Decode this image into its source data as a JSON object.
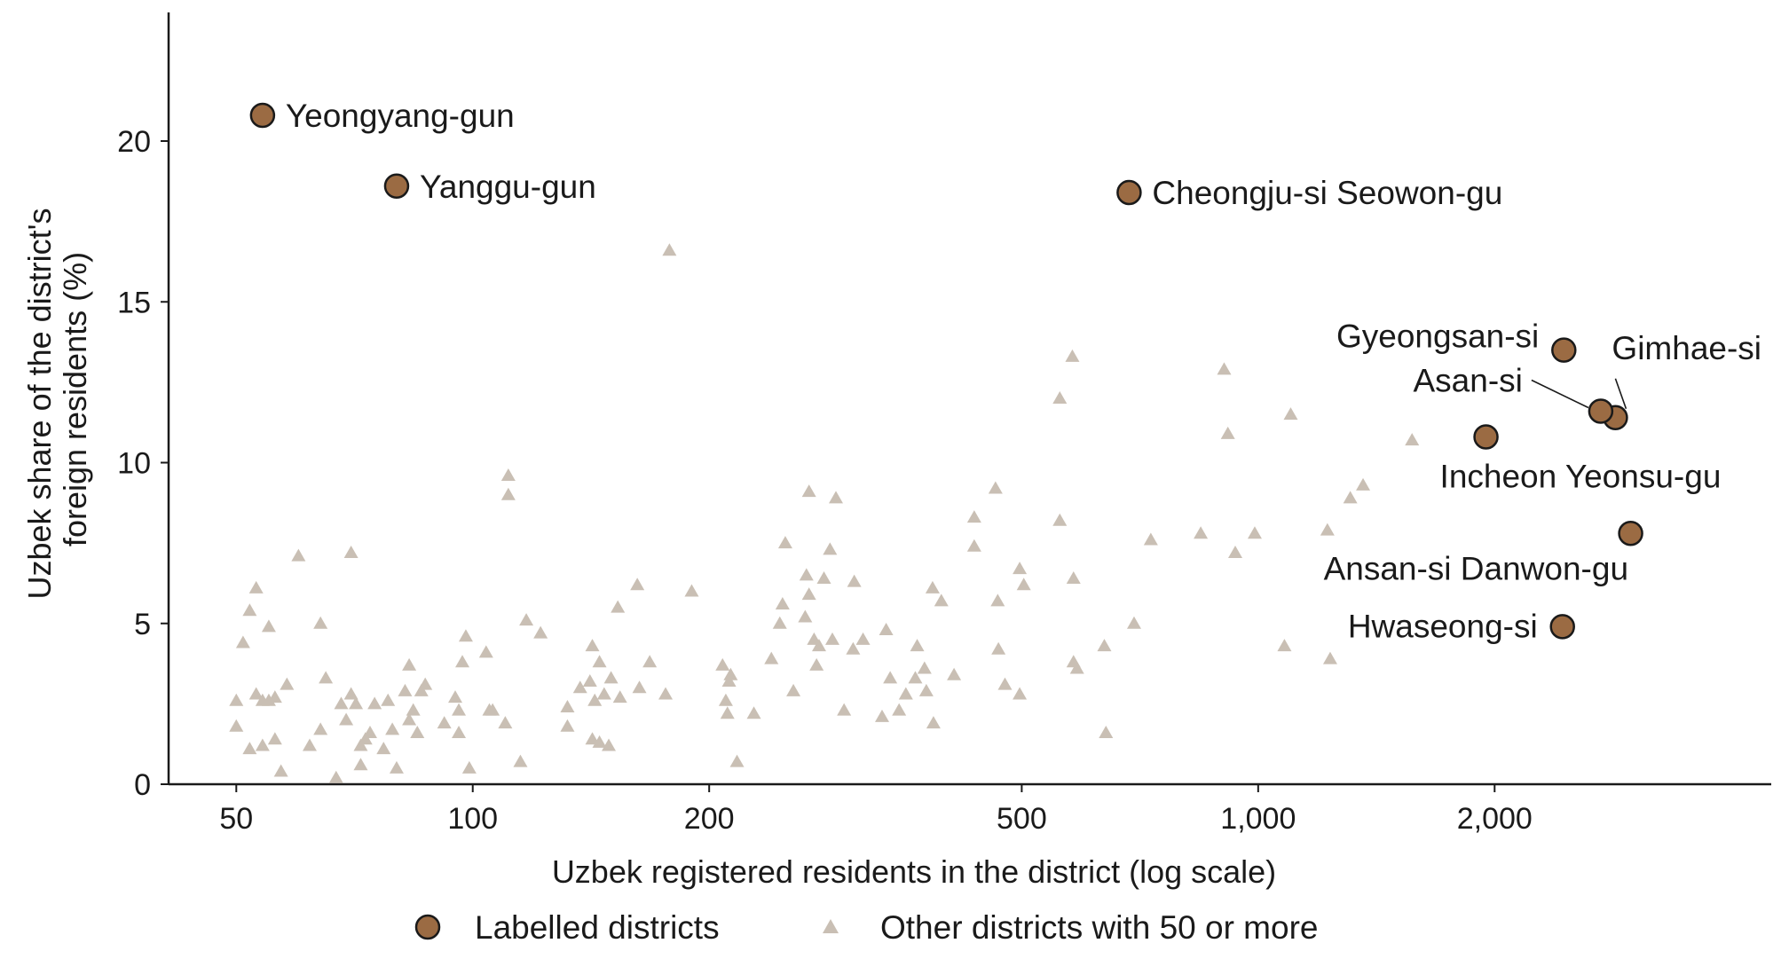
{
  "chart_data": {
    "type": "scatter",
    "title": "",
    "xlabel": "Uzbek registered residents in the district (log scale)",
    "ylabel": "Uzbek share of the district's foreign residents (%)",
    "x_scale": "log",
    "xlim": [
      41,
      4500
    ],
    "ylim": [
      0,
      24
    ],
    "x_ticks": [
      {
        "value": 50,
        "label": "50"
      },
      {
        "value": 100,
        "label": "100"
      },
      {
        "value": 200,
        "label": "200"
      },
      {
        "value": 500,
        "label": "500"
      },
      {
        "value": 1000,
        "label": "1,000"
      },
      {
        "value": 2000,
        "label": "2,000"
      }
    ],
    "y_ticks": [
      {
        "value": 0,
        "label": "0"
      },
      {
        "value": 5,
        "label": "5"
      },
      {
        "value": 10,
        "label": "10"
      },
      {
        "value": 15,
        "label": "15"
      },
      {
        "value": 20,
        "label": "20"
      }
    ],
    "grid": false,
    "legend_placement": "bottom-center",
    "series": [
      {
        "name": "Labelled districts",
        "marker": "circle",
        "color": "#9b6b43",
        "stroke": "#1a1a1a",
        "points": [
          {
            "x": 54,
            "y": 20.8,
            "label": "Yeongyang-gun"
          },
          {
            "x": 80,
            "y": 18.6,
            "label": "Yanggu-gun"
          },
          {
            "x": 685,
            "y": 18.4,
            "label": "Cheongju-si Seowon-gu"
          },
          {
            "x": 2450,
            "y": 13.5,
            "label": "Gyeongsan-si"
          },
          {
            "x": 2850,
            "y": 11.4,
            "label": "Gimhae-si"
          },
          {
            "x": 2730,
            "y": 11.6,
            "label": "Asan-si"
          },
          {
            "x": 1950,
            "y": 10.8,
            "label": "Incheon Yeonsu-gu"
          },
          {
            "x": 2980,
            "y": 7.8,
            "label": "Ansan-si Danwon-gu"
          },
          {
            "x": 2440,
            "y": 4.9,
            "label": "Hwaseong-si"
          }
        ]
      },
      {
        "name": "Other districts with 50 or more",
        "marker": "triangle",
        "color": "#c9bfb4",
        "points": [
          [
            50,
            2.6
          ],
          [
            50,
            1.8
          ],
          [
            51,
            4.4
          ],
          [
            52,
            1.1
          ],
          [
            52,
            5.4
          ],
          [
            53,
            2.8
          ],
          [
            53,
            6.1
          ],
          [
            54,
            2.6
          ],
          [
            54,
            1.2
          ],
          [
            55,
            4.9
          ],
          [
            55,
            2.6
          ],
          [
            56,
            1.4
          ],
          [
            56,
            2.7
          ],
          [
            57,
            0.4
          ],
          [
            58,
            3.1
          ],
          [
            60,
            7.1
          ],
          [
            62,
            1.2
          ],
          [
            64,
            5.0
          ],
          [
            64,
            1.7
          ],
          [
            65,
            3.3
          ],
          [
            67,
            0.2
          ],
          [
            68,
            2.5
          ],
          [
            69,
            2.0
          ],
          [
            70,
            7.2
          ],
          [
            70,
            2.8
          ],
          [
            71,
            2.5
          ],
          [
            72,
            1.2
          ],
          [
            72,
            0.6
          ],
          [
            73,
            1.4
          ],
          [
            74,
            1.6
          ],
          [
            75,
            2.5
          ],
          [
            77,
            1.1
          ],
          [
            78,
            2.6
          ],
          [
            79,
            1.7
          ],
          [
            80,
            0.5
          ],
          [
            82,
            2.9
          ],
          [
            83,
            2.0
          ],
          [
            83,
            3.7
          ],
          [
            84,
            2.3
          ],
          [
            85,
            1.6
          ],
          [
            86,
            2.9
          ],
          [
            87,
            3.1
          ],
          [
            92,
            1.9
          ],
          [
            95,
            2.7
          ],
          [
            96,
            2.3
          ],
          [
            96,
            1.6
          ],
          [
            97,
            3.8
          ],
          [
            98,
            4.6
          ],
          [
            99,
            0.5
          ],
          [
            104,
            4.1
          ],
          [
            105,
            2.3
          ],
          [
            106,
            2.3
          ],
          [
            110,
            1.9
          ],
          [
            111,
            9.6
          ],
          [
            111,
            9.0
          ],
          [
            115,
            0.7
          ],
          [
            117,
            5.1
          ],
          [
            122,
            4.7
          ],
          [
            132,
            1.8
          ],
          [
            132,
            2.4
          ],
          [
            137,
            3.0
          ],
          [
            141,
            3.2
          ],
          [
            142,
            4.3
          ],
          [
            142,
            1.4
          ],
          [
            143,
            2.6
          ],
          [
            145,
            1.3
          ],
          [
            145,
            3.8
          ],
          [
            147,
            2.8
          ],
          [
            149,
            1.2
          ],
          [
            150,
            3.3
          ],
          [
            153,
            5.5
          ],
          [
            154,
            2.7
          ],
          [
            162,
            6.2
          ],
          [
            163,
            3.0
          ],
          [
            168,
            3.8
          ],
          [
            176,
            2.8
          ],
          [
            178,
            16.6
          ],
          [
            190,
            6.0
          ],
          [
            208,
            3.7
          ],
          [
            210,
            2.6
          ],
          [
            211,
            2.2
          ],
          [
            212,
            3.2
          ],
          [
            213,
            3.4
          ],
          [
            217,
            0.7
          ],
          [
            228,
            2.2
          ],
          [
            240,
            3.9
          ],
          [
            246,
            5.0
          ],
          [
            248,
            5.6
          ],
          [
            250,
            7.5
          ],
          [
            256,
            2.9
          ],
          [
            265,
            5.2
          ],
          [
            266,
            6.5
          ],
          [
            268,
            9.1
          ],
          [
            268,
            5.9
          ],
          [
            272,
            4.5
          ],
          [
            274,
            3.7
          ],
          [
            276,
            4.3
          ],
          [
            280,
            6.4
          ],
          [
            285,
            7.3
          ],
          [
            287,
            4.5
          ],
          [
            290,
            8.9
          ],
          [
            297,
            2.3
          ],
          [
            305,
            4.2
          ],
          [
            306,
            6.3
          ],
          [
            314,
            4.5
          ],
          [
            332,
            2.1
          ],
          [
            336,
            4.8
          ],
          [
            340,
            3.3
          ],
          [
            349,
            2.3
          ],
          [
            356,
            2.8
          ],
          [
            366,
            3.3
          ],
          [
            368,
            4.3
          ],
          [
            376,
            3.6
          ],
          [
            378,
            2.9
          ],
          [
            385,
            6.1
          ],
          [
            386,
            1.9
          ],
          [
            395,
            5.7
          ],
          [
            410,
            3.4
          ],
          [
            435,
            8.3
          ],
          [
            435,
            7.4
          ],
          [
            463,
            9.2
          ],
          [
            466,
            5.7
          ],
          [
            467,
            4.2
          ],
          [
            476,
            3.1
          ],
          [
            497,
            6.7
          ],
          [
            497,
            2.8
          ],
          [
            503,
            6.2
          ],
          [
            559,
            8.2
          ],
          [
            559,
            12.0
          ],
          [
            580,
            13.3
          ],
          [
            582,
            6.4
          ],
          [
            582,
            3.8
          ],
          [
            588,
            3.6
          ],
          [
            637,
            4.3
          ],
          [
            640,
            1.6
          ],
          [
            695,
            5.0
          ],
          [
            730,
            7.6
          ],
          [
            845,
            7.8
          ],
          [
            905,
            12.9
          ],
          [
            915,
            10.9
          ],
          [
            935,
            7.2
          ],
          [
            990,
            7.8
          ],
          [
            1080,
            4.3
          ],
          [
            1100,
            11.5
          ],
          [
            1225,
            7.9
          ],
          [
            1235,
            3.9
          ],
          [
            1310,
            8.9
          ],
          [
            1360,
            9.3
          ],
          [
            1570,
            10.7
          ]
        ]
      }
    ]
  }
}
